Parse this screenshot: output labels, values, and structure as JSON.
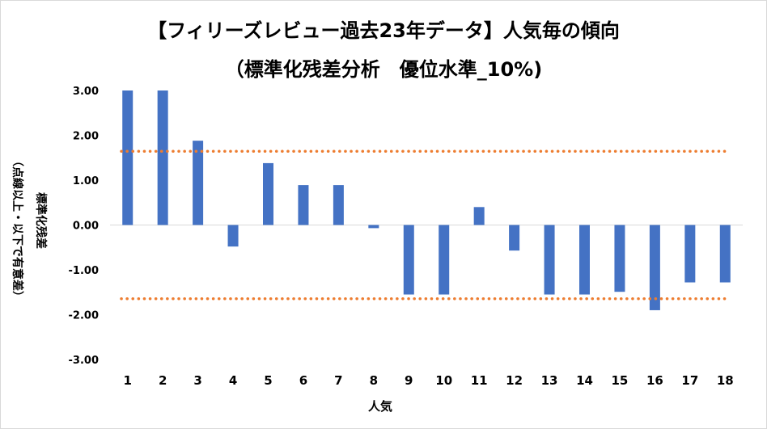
{
  "chart_data": {
    "type": "bar",
    "title": "【フィリーズレビュー過去23年データ】人気毎の傾向",
    "subtitle": "（標準化残差分析　優位水準_10%)",
    "xlabel": "人気",
    "ylabel": "標準化残差",
    "ylabel_sub": "（点線以上・以下で有意差）",
    "categories": [
      "1",
      "2",
      "3",
      "4",
      "5",
      "6",
      "7",
      "8",
      "9",
      "10",
      "11",
      "12",
      "13",
      "14",
      "15",
      "16",
      "17",
      "18"
    ],
    "series": [
      {
        "values": [
          3.0,
          3.0,
          1.88,
          -0.48,
          1.38,
          0.89,
          0.89,
          -0.07,
          -1.55,
          -1.55,
          0.4,
          -0.57,
          -1.55,
          -1.55,
          -1.49,
          -1.9,
          -1.28,
          -1.28
        ]
      }
    ],
    "threshold_lines": [
      1.645,
      -1.645
    ],
    "ylim": [
      -3.0,
      3.0
    ],
    "yticks": [
      "3.00",
      "2.00",
      "1.00",
      "0.00",
      "-1.00",
      "-2.00",
      "-3.00"
    ],
    "grid": false,
    "colors": {
      "bar": "#4472c4",
      "threshold": "#ed7d31"
    }
  }
}
